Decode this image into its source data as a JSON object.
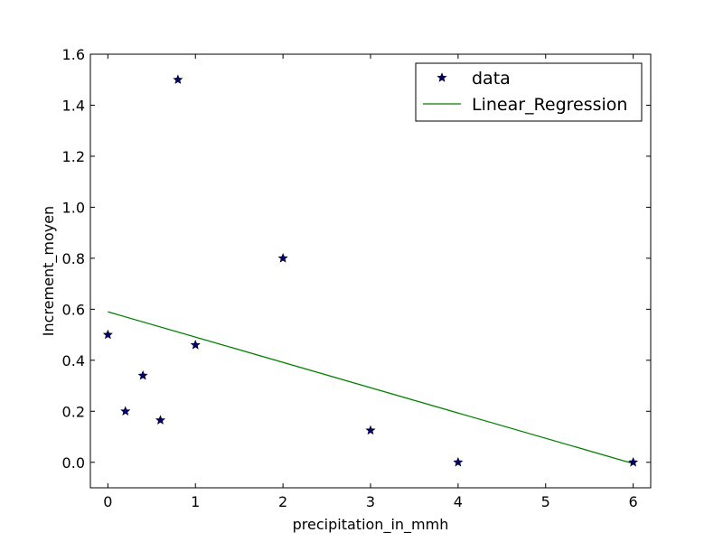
{
  "chart_data": {
    "type": "scatter",
    "xlabel": "precipitation_in_mmh",
    "ylabel": "Increment_moyen",
    "xlim": [
      -0.2,
      6.2
    ],
    "ylim": [
      -0.1,
      1.6
    ],
    "xticks": [
      0,
      1,
      2,
      3,
      4,
      5,
      6
    ],
    "yticks": [
      0.0,
      0.2,
      0.4,
      0.6,
      0.8,
      1.0,
      1.2,
      1.4,
      1.6
    ],
    "xtick_labels": [
      "0",
      "1",
      "2",
      "3",
      "4",
      "5",
      "6"
    ],
    "ytick_labels": [
      "0.0",
      "0.2",
      "0.4",
      "0.6",
      "0.8",
      "1.0",
      "1.2",
      "1.4",
      "1.6"
    ],
    "grid": false,
    "legend_position": "top-right",
    "series": [
      {
        "name": "data",
        "type": "scatter",
        "marker": "star",
        "color": "#000080",
        "x": [
          0,
          0.2,
          0.4,
          0.6,
          0.8,
          1.0,
          2.0,
          3.0,
          4.0,
          6.0
        ],
        "y": [
          0.5,
          0.2,
          0.34,
          0.165,
          1.5,
          0.46,
          0.8,
          0.125,
          0.0,
          0.0
        ]
      },
      {
        "name": "Linear_Regression",
        "type": "line",
        "color": "#008000",
        "x": [
          0,
          6
        ],
        "y": [
          0.59,
          -0.005
        ]
      }
    ]
  }
}
